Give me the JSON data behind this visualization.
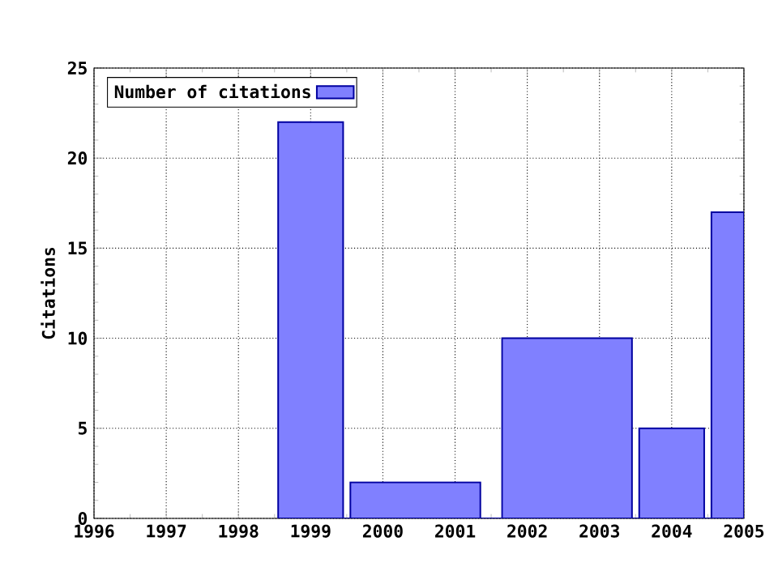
{
  "chart_data": {
    "type": "histogram",
    "ylabel": "Citations",
    "bins": [
      1998.55,
      1999.45,
      1999.55,
      2001.35,
      2001.65,
      2003.45,
      2003.55,
      2004.45,
      2004.55,
      2005
    ],
    "series": [
      {
        "name": "Number of citations",
        "color": "#8080ff",
        "values": [
          22,
          0,
          2,
          0,
          10,
          0,
          5,
          0,
          17
        ]
      }
    ],
    "xlim": [
      1996,
      2005
    ],
    "xticks": [
      1996,
      1997,
      1998,
      1999,
      2000,
      2001,
      2002,
      2003,
      2004,
      2005
    ],
    "ylim": [
      0,
      25
    ],
    "yticks": [
      0,
      5,
      10,
      15,
      20,
      25
    ],
    "grid": true,
    "legend": "top left"
  }
}
